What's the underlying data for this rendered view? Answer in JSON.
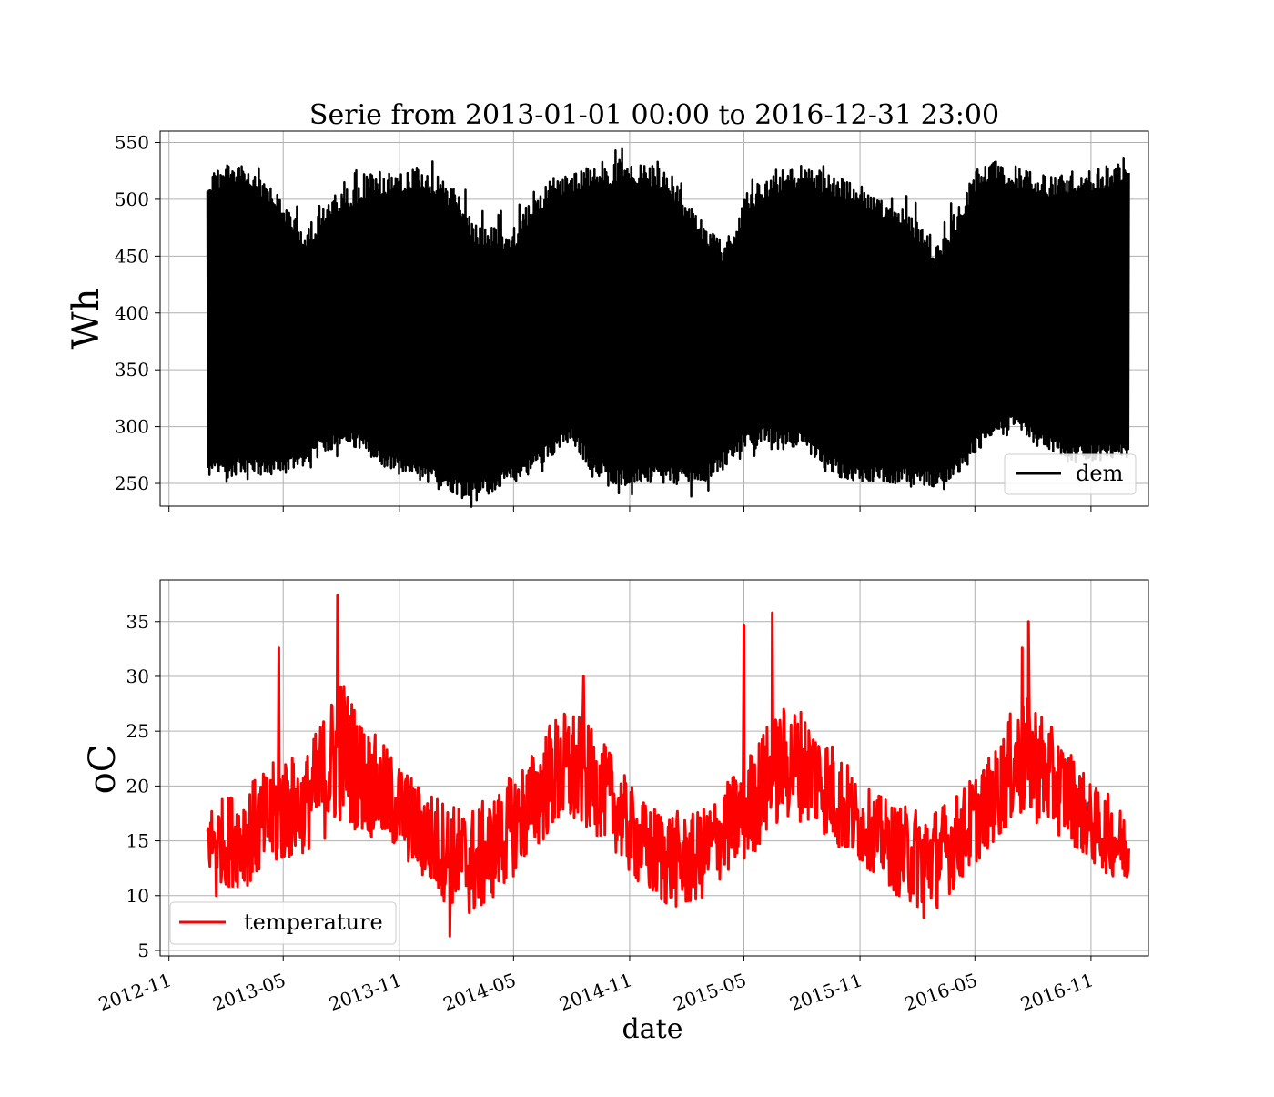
{
  "chart_data": [
    {
      "type": "line",
      "title": "Serie from 2013-01-01 00:00 to 2016-12-31 23:00",
      "ylabel": "Wh",
      "ylim": [
        230,
        560
      ],
      "yticks": [
        250,
        300,
        350,
        400,
        450,
        500,
        550
      ],
      "xlim": [
        "2012-10-18",
        "2017-01-31"
      ],
      "grid": true,
      "legend_position": "lower right",
      "series": [
        {
          "name": "dem",
          "color": "#000000",
          "style": "dense oscillating band (hourly)",
          "envelope": {
            "x": [
              "2013-01-01",
              "2013-02-01",
              "2013-03-01",
              "2013-04-01",
              "2013-05-01",
              "2013-06-01",
              "2013-07-01",
              "2013-08-01",
              "2013-09-01",
              "2013-10-01",
              "2013-11-01",
              "2013-12-01",
              "2014-01-01",
              "2014-02-01",
              "2014-03-01",
              "2014-04-01",
              "2014-05-01",
              "2014-06-01",
              "2014-07-01",
              "2014-08-01",
              "2014-09-01",
              "2014-10-01",
              "2014-11-01",
              "2014-12-01",
              "2015-01-01",
              "2015-02-01",
              "2015-03-01",
              "2015-04-01",
              "2015-05-01",
              "2015-06-01",
              "2015-07-01",
              "2015-08-01",
              "2015-09-01",
              "2015-10-01",
              "2015-11-01",
              "2015-12-01",
              "2016-01-01",
              "2016-02-01",
              "2016-03-01",
              "2016-04-01",
              "2016-05-01",
              "2016-06-01",
              "2016-07-01",
              "2016-08-01",
              "2016-09-01",
              "2016-10-01",
              "2016-11-01",
              "2016-12-01",
              "2016-12-31"
            ],
            "upper": [
              520,
              535,
              530,
              515,
              500,
              475,
              490,
              510,
              515,
              520,
              525,
              530,
              520,
              505,
              480,
              475,
              475,
              500,
              520,
              525,
              530,
              530,
              535,
              530,
              525,
              500,
              480,
              460,
              500,
              520,
              525,
              530,
              525,
              520,
              515,
              500,
              495,
              480,
              460,
              490,
              525,
              535,
              530,
              525,
              520,
              525,
              525,
              530,
              535
            ],
            "lower": [
              255,
              255,
              260,
              255,
              258,
              265,
              275,
              285,
              278,
              265,
              258,
              252,
              248,
              240,
              238,
              242,
              250,
              260,
              275,
              285,
              262,
              250,
              248,
              250,
              250,
              248,
              250,
              265,
              280,
              285,
              285,
              280,
              265,
              255,
              252,
              250,
              250,
              248,
              247,
              255,
              275,
              290,
              295,
              285,
              275,
              268,
              270,
              270,
              270
            ]
          }
        }
      ]
    },
    {
      "type": "line",
      "xlabel": "date",
      "ylabel": "oC",
      "ylim": [
        4.5,
        38.8
      ],
      "yticks": [
        5,
        10,
        15,
        20,
        25,
        30,
        35
      ],
      "xlim": [
        "2012-10-18",
        "2017-01-31"
      ],
      "xticks": [
        "2012-11",
        "2013-05",
        "2013-11",
        "2014-05",
        "2014-11",
        "2015-05",
        "2015-11",
        "2016-05",
        "2016-11"
      ],
      "grid": true,
      "legend_position": "lower left",
      "series": [
        {
          "name": "temperature",
          "color": "#ff0000",
          "style": "noisy daily oscillation",
          "envelope": {
            "x": [
              "2013-01-01",
              "2013-02-01",
              "2013-03-01",
              "2013-04-01",
              "2013-05-01",
              "2013-06-01",
              "2013-07-01",
              "2013-08-01",
              "2013-09-01",
              "2013-10-01",
              "2013-11-01",
              "2013-12-01",
              "2014-01-01",
              "2014-02-01",
              "2014-03-01",
              "2014-04-01",
              "2014-05-01",
              "2014-06-01",
              "2014-07-01",
              "2014-08-01",
              "2014-09-01",
              "2014-10-01",
              "2014-11-01",
              "2014-12-01",
              "2015-01-01",
              "2015-02-01",
              "2015-03-01",
              "2015-04-01",
              "2015-05-01",
              "2015-06-01",
              "2015-07-01",
              "2015-08-01",
              "2015-09-01",
              "2015-10-01",
              "2015-11-01",
              "2015-12-01",
              "2016-01-01",
              "2016-02-01",
              "2016-03-01",
              "2016-04-01",
              "2016-05-01",
              "2016-06-01",
              "2016-07-01",
              "2016-08-01",
              "2016-09-01",
              "2016-10-01",
              "2016-11-01",
              "2016-12-01",
              "2016-12-31"
            ],
            "upper": [
              18,
              19,
              20,
              21,
              23,
              22,
              26,
              30,
              26,
              24,
              22,
              20,
              19,
              18,
              18,
              19,
              21,
              23,
              26,
              27,
              25,
              23,
              20,
              18,
              18,
              17,
              18,
              20,
              22,
              25,
              27,
              27,
              25,
              23,
              20,
              19,
              18,
              18,
              18,
              19,
              21,
              23,
              27,
              28,
              25,
              23,
              20,
              19,
              17
            ],
            "lower": [
              12,
              11,
              11,
              12,
              13,
              14,
              15,
              17,
              16,
              15,
              14,
              12,
              10,
              9,
              8,
              10,
              12,
              14,
              16,
              16,
              16,
              15,
              12,
              10,
              9,
              9,
              10,
              12,
              13,
              15,
              17,
              17,
              16,
              14,
              13,
              12,
              10,
              9,
              9,
              11,
              13,
              15,
              17,
              17,
              16,
              15,
              13,
              12,
              11
            ],
            "peaks": [
              {
                "x": "2013-04-24",
                "y": 32.6
              },
              {
                "x": "2013-07-26",
                "y": 37.4
              },
              {
                "x": "2014-08-20",
                "y": 30.0
              },
              {
                "x": "2015-05-01",
                "y": 34.7
              },
              {
                "x": "2015-06-15",
                "y": 35.8
              },
              {
                "x": "2016-07-15",
                "y": 32.6
              },
              {
                "x": "2016-07-25",
                "y": 35.0
              }
            ],
            "troughs": [
              {
                "x": "2013-01-15",
                "y": 10.0
              },
              {
                "x": "2014-01-20",
                "y": 6.3
              },
              {
                "x": "2016-02-10",
                "y": 8.0
              }
            ]
          }
        }
      ]
    }
  ]
}
